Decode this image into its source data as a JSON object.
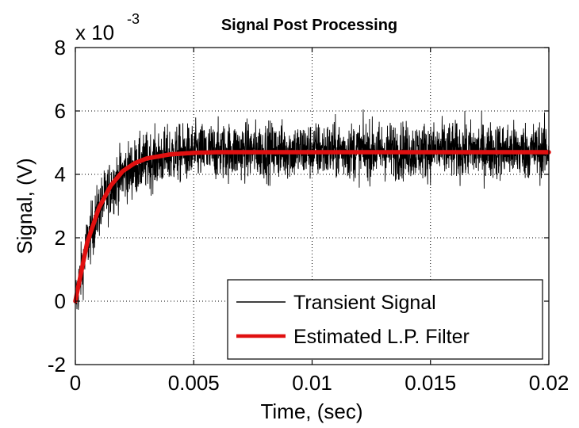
{
  "chart_data": {
    "type": "line",
    "title": "Signal Post Processing",
    "xlabel": "Time, (sec)",
    "ylabel": "Signal, (V)",
    "y_multiplier_label": "x 10",
    "y_multiplier_exponent": "-3",
    "xlim": [
      0,
      0.02
    ],
    "ylim": [
      -2,
      8
    ],
    "x_ticks": [
      0,
      0.005,
      0.01,
      0.015,
      0.02
    ],
    "x_tick_labels": [
      "0",
      "0.005",
      "0.01",
      "0.015",
      "0.02"
    ],
    "y_ticks": [
      -2,
      0,
      2,
      4,
      6,
      8
    ],
    "y_tick_labels": [
      "-2",
      "0",
      "2",
      "4",
      "6",
      "8"
    ],
    "grid": true,
    "grid_style": "dotted",
    "legend_position": "lower-right",
    "series": [
      {
        "name": "Transient Signal",
        "color": "#000000",
        "style": "noisy-line",
        "model": "first-order step response with noise",
        "x": [
          0,
          0.0005,
          0.001,
          0.0015,
          0.002,
          0.003,
          0.004,
          0.005,
          0.0075,
          0.01,
          0.0125,
          0.015,
          0.0175,
          0.02
        ],
        "y": [
          0.0,
          1.8,
          2.9,
          3.6,
          4.0,
          4.4,
          4.6,
          4.7,
          4.75,
          4.75,
          4.75,
          4.75,
          4.75,
          4.75
        ],
        "noise_band": [
          -0.8,
          1.4
        ]
      },
      {
        "name": "Estimated L.P. Filter",
        "color": "#e01010",
        "style": "thick-line",
        "x": [
          0,
          0.0005,
          0.001,
          0.0015,
          0.002,
          0.0025,
          0.003,
          0.004,
          0.005,
          0.006,
          0.01,
          0.015,
          0.02
        ],
        "y": [
          0.0,
          1.85,
          2.95,
          3.65,
          4.1,
          4.35,
          4.5,
          4.63,
          4.68,
          4.7,
          4.7,
          4.7,
          4.7
        ]
      }
    ]
  }
}
